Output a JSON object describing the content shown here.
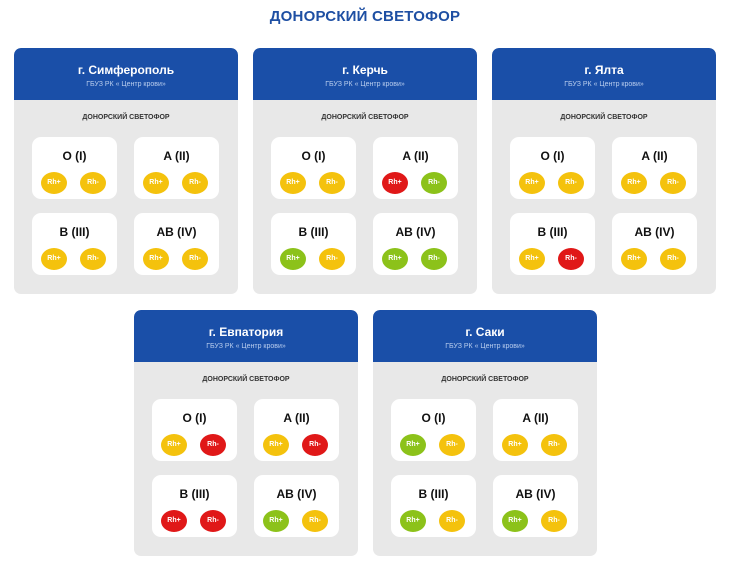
{
  "page": {
    "title": "ДОНОРСКИЙ СВЕТОФОР"
  },
  "colors": {
    "yellow": "#f4c20d",
    "red": "#e01818",
    "green": "#8cc21a",
    "header": "#1a4fa8",
    "title": "#1e4fa3"
  },
  "cards": [
    {
      "city": "г. Симферополь",
      "org": "ГБУЗ РК « Центр крови»",
      "subtitle": "ДОНОРСКИЙ СВЕТОФОР",
      "groups": [
        {
          "name": "O (I)",
          "rh": [
            {
              "label": "Rh+",
              "status": "yellow"
            },
            {
              "label": "Rh-",
              "status": "yellow"
            }
          ]
        },
        {
          "name": "A (II)",
          "rh": [
            {
              "label": "Rh+",
              "status": "yellow"
            },
            {
              "label": "Rh-",
              "status": "yellow"
            }
          ]
        },
        {
          "name": "B (III)",
          "rh": [
            {
              "label": "Rh+",
              "status": "yellow"
            },
            {
              "label": "Rh-",
              "status": "yellow"
            }
          ]
        },
        {
          "name": "AB (IV)",
          "rh": [
            {
              "label": "Rh+",
              "status": "yellow"
            },
            {
              "label": "Rh-",
              "status": "yellow"
            }
          ]
        }
      ]
    },
    {
      "city": "г. Керчь",
      "org": "ГБУЗ РК « Центр крови»",
      "subtitle": "ДОНОРСКИЙ СВЕТОФОР",
      "groups": [
        {
          "name": "O (I)",
          "rh": [
            {
              "label": "Rh+",
              "status": "yellow"
            },
            {
              "label": "Rh-",
              "status": "yellow"
            }
          ]
        },
        {
          "name": "A (II)",
          "rh": [
            {
              "label": "Rh+",
              "status": "red"
            },
            {
              "label": "Rh-",
              "status": "green"
            }
          ]
        },
        {
          "name": "B (III)",
          "rh": [
            {
              "label": "Rh+",
              "status": "green"
            },
            {
              "label": "Rh-",
              "status": "yellow"
            }
          ]
        },
        {
          "name": "AB (IV)",
          "rh": [
            {
              "label": "Rh+",
              "status": "green"
            },
            {
              "label": "Rh-",
              "status": "green"
            }
          ]
        }
      ]
    },
    {
      "city": "г. Ялта",
      "org": "ГБУЗ РК « Центр крови»",
      "subtitle": "ДОНОРСКИЙ СВЕТОФОР",
      "groups": [
        {
          "name": "O (I)",
          "rh": [
            {
              "label": "Rh+",
              "status": "yellow"
            },
            {
              "label": "Rh-",
              "status": "yellow"
            }
          ]
        },
        {
          "name": "A (II)",
          "rh": [
            {
              "label": "Rh+",
              "status": "yellow"
            },
            {
              "label": "Rh-",
              "status": "yellow"
            }
          ]
        },
        {
          "name": "B (III)",
          "rh": [
            {
              "label": "Rh+",
              "status": "yellow"
            },
            {
              "label": "Rh-",
              "status": "red"
            }
          ]
        },
        {
          "name": "AB (IV)",
          "rh": [
            {
              "label": "Rh+",
              "status": "yellow"
            },
            {
              "label": "Rh-",
              "status": "yellow"
            }
          ]
        }
      ]
    },
    {
      "city": "г. Евпатория",
      "org": "ГБУЗ РК « Центр крови»",
      "subtitle": "ДОНОРСКИЙ СВЕТОФОР",
      "groups": [
        {
          "name": "O (I)",
          "rh": [
            {
              "label": "Rh+",
              "status": "yellow"
            },
            {
              "label": "Rh-",
              "status": "red"
            }
          ]
        },
        {
          "name": "A (II)",
          "rh": [
            {
              "label": "Rh+",
              "status": "yellow"
            },
            {
              "label": "Rh-",
              "status": "red"
            }
          ]
        },
        {
          "name": "B (III)",
          "rh": [
            {
              "label": "Rh+",
              "status": "red"
            },
            {
              "label": "Rh-",
              "status": "red"
            }
          ]
        },
        {
          "name": "AB (IV)",
          "rh": [
            {
              "label": "Rh+",
              "status": "green"
            },
            {
              "label": "Rh-",
              "status": "yellow"
            }
          ]
        }
      ]
    },
    {
      "city": "г. Саки",
      "org": "ГБУЗ РК « Центр крови»",
      "subtitle": "ДОНОРСКИЙ СВЕТОФОР",
      "groups": [
        {
          "name": "O (I)",
          "rh": [
            {
              "label": "Rh+",
              "status": "green"
            },
            {
              "label": "Rh-",
              "status": "yellow"
            }
          ]
        },
        {
          "name": "A (II)",
          "rh": [
            {
              "label": "Rh+",
              "status": "yellow"
            },
            {
              "label": "Rh-",
              "status": "yellow"
            }
          ]
        },
        {
          "name": "B (III)",
          "rh": [
            {
              "label": "Rh+",
              "status": "green"
            },
            {
              "label": "Rh-",
              "status": "yellow"
            }
          ]
        },
        {
          "name": "AB (IV)",
          "rh": [
            {
              "label": "Rh+",
              "status": "green"
            },
            {
              "label": "Rh-",
              "status": "yellow"
            }
          ]
        }
      ]
    }
  ]
}
